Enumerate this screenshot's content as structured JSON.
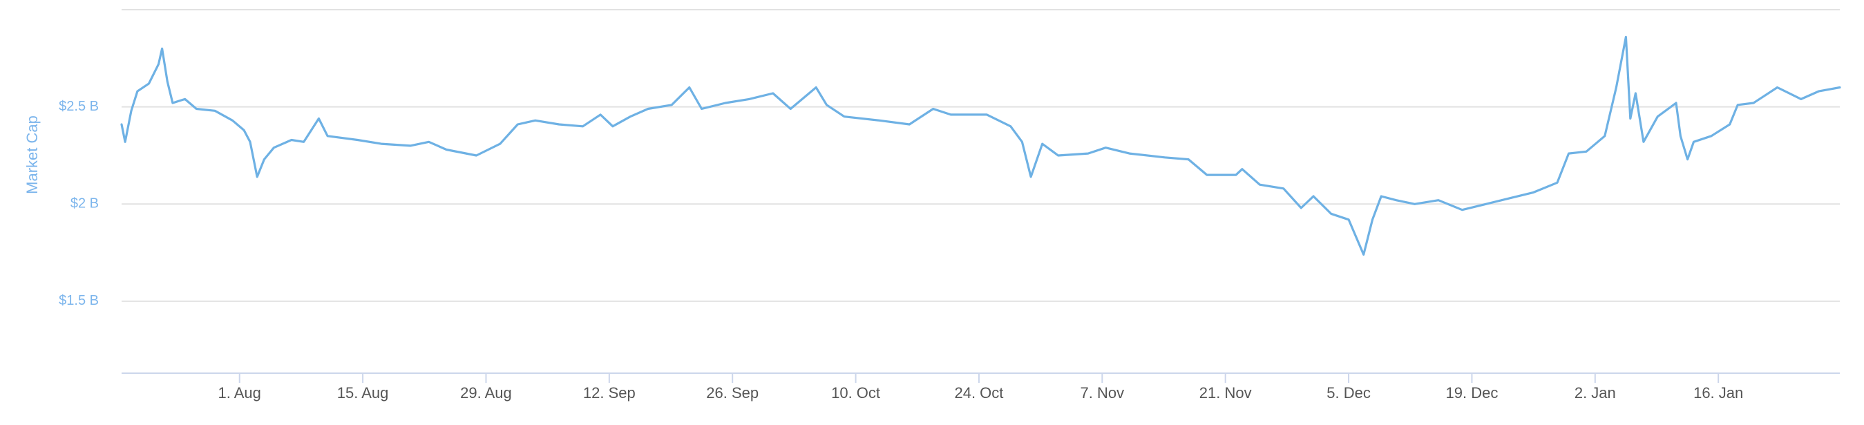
{
  "chart_data": {
    "type": "line",
    "y_axis_label": "Market Cap",
    "color": "#6eb1e4",
    "grid": true,
    "xlim": [
      -13.4,
      181.8
    ],
    "xticks": [
      {
        "value": 0,
        "label": "1. Aug"
      },
      {
        "value": 14,
        "label": "15. Aug"
      },
      {
        "value": 28,
        "label": "29. Aug"
      },
      {
        "value": 42,
        "label": "12. Sep"
      },
      {
        "value": 56,
        "label": "26. Sep"
      },
      {
        "value": 70,
        "label": "10. Oct"
      },
      {
        "value": 84,
        "label": "24. Oct"
      },
      {
        "value": 98,
        "label": "7. Nov"
      },
      {
        "value": 112,
        "label": "21. Nov"
      },
      {
        "value": 126,
        "label": "5. Dec"
      },
      {
        "value": 140,
        "label": "19. Dec"
      },
      {
        "value": 154,
        "label": "2. Jan"
      },
      {
        "value": 168,
        "label": "16. Jan"
      }
    ],
    "ylim": [
      1.13,
      3.0
    ],
    "yticks": [
      {
        "value": 1.5,
        "label": "$1.5 B"
      },
      {
        "value": 2,
        "label": "$2 B"
      },
      {
        "value": 2.5,
        "label": "$2.5 B"
      }
    ],
    "x": [
      -13.4,
      -13.0,
      -12.3,
      -11.6,
      -10.3,
      -9.2,
      -8.8,
      -8.2,
      -7.6,
      -6.2,
      -4.9,
      -2.8,
      -0.8,
      0.5,
      1.2,
      2.0,
      2.8,
      3.9,
      5.9,
      7.3,
      9.0,
      10.0,
      13.4,
      16.1,
      19.4,
      21.5,
      23.5,
      26.9,
      29.6,
      31.6,
      33.6,
      36.3,
      39.0,
      41.0,
      42.4,
      44.4,
      46.4,
      49.1,
      51.1,
      52.5,
      55.2,
      57.9,
      60.6,
      62.6,
      65.5,
      66.7,
      68.7,
      72.7,
      76.1,
      78.8,
      80.8,
      84.9,
      87.6,
      88.9,
      89.9,
      91.2,
      93.0,
      96.4,
      98.4,
      101.1,
      105.1,
      107.8,
      109.9,
      113.2,
      113.9,
      115.9,
      118.6,
      120.6,
      122.0,
      124.0,
      126.0,
      127.7,
      128.7,
      129.7,
      131.4,
      133.5,
      136.2,
      138.9,
      141.6,
      144.3,
      147.0,
      149.7,
      151.0,
      153.0,
      155.1,
      156.4,
      157.5,
      158.0,
      158.6,
      159.5,
      161.1,
      163.2,
      163.7,
      164.5,
      165.2,
      167.2,
      169.3,
      170.2,
      172.0,
      174.7,
      177.4,
      179.4,
      181.8
    ],
    "values": [
      2.41,
      2.32,
      2.48,
      2.58,
      2.62,
      2.72,
      2.8,
      2.63,
      2.52,
      2.54,
      2.49,
      2.48,
      2.43,
      2.38,
      2.32,
      2.14,
      2.23,
      2.29,
      2.33,
      2.32,
      2.44,
      2.35,
      2.33,
      2.31,
      2.3,
      2.32,
      2.28,
      2.25,
      2.31,
      2.41,
      2.43,
      2.41,
      2.4,
      2.46,
      2.4,
      2.45,
      2.49,
      2.51,
      2.6,
      2.49,
      2.52,
      2.54,
      2.57,
      2.49,
      2.6,
      2.51,
      2.45,
      2.43,
      2.41,
      2.49,
      2.46,
      2.46,
      2.4,
      2.32,
      2.14,
      2.31,
      2.25,
      2.26,
      2.29,
      2.26,
      2.24,
      2.23,
      2.15,
      2.15,
      2.18,
      2.1,
      2.08,
      1.98,
      2.04,
      1.95,
      1.92,
      1.74,
      1.92,
      2.04,
      2.02,
      2.0,
      2.02,
      1.97,
      2.0,
      2.03,
      2.06,
      2.11,
      2.26,
      2.27,
      2.35,
      2.6,
      2.86,
      2.44,
      2.57,
      2.32,
      2.45,
      2.52,
      2.35,
      2.23,
      2.32,
      2.35,
      2.41,
      2.51,
      2.52,
      2.6,
      2.54,
      2.58,
      2.6
    ]
  }
}
